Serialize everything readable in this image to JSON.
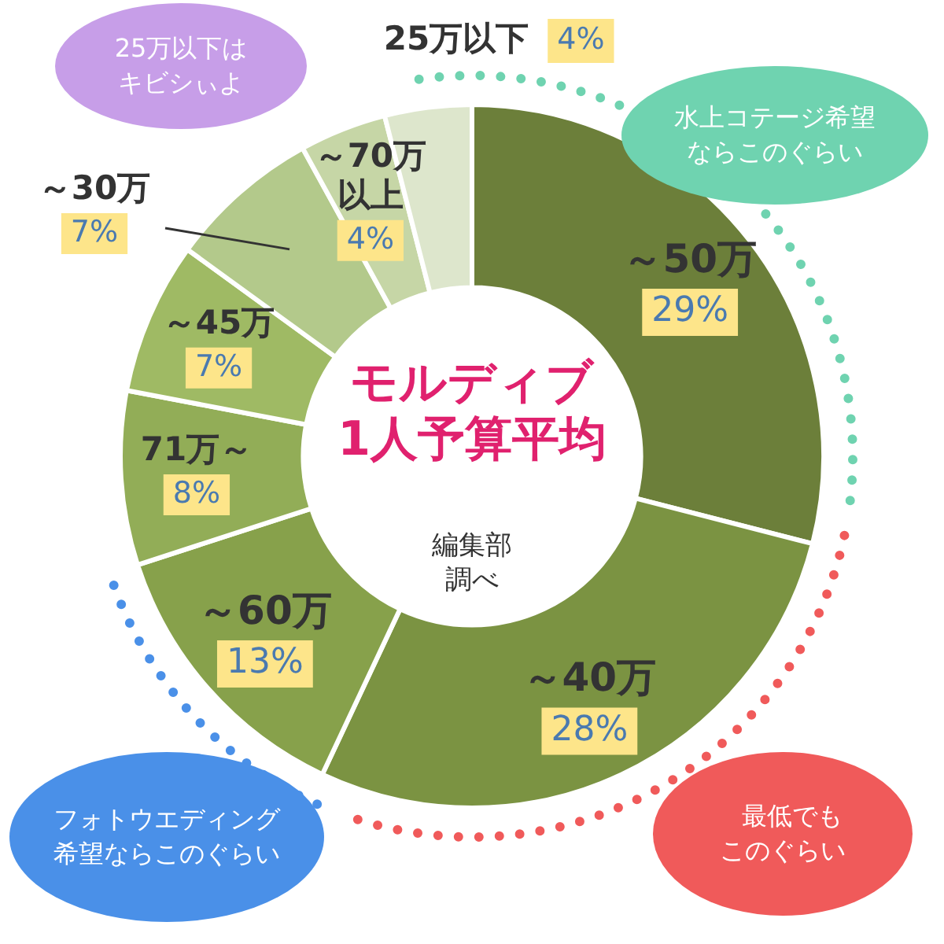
{
  "chart_data": {
    "type": "donut",
    "title": "モルディブ\n1人予算平均",
    "categories": [
      "～50万",
      "～40万",
      "～60万",
      "71万～",
      "～45万",
      "～30万",
      "～70万以上",
      "25万以下"
    ],
    "values": [
      29,
      28,
      13,
      8,
      7,
      7,
      4,
      4
    ],
    "value_labels": [
      "29%",
      "28%",
      "13%",
      "8%",
      "7%",
      "7%",
      "4%",
      "4%"
    ],
    "colors": [
      "#6c7f3a",
      "#7b9342",
      "#87a14b",
      "#92ad57",
      "#9fba64",
      "#b3c98b",
      "#c6d6a6",
      "#dde6cc"
    ],
    "legend": false,
    "annotations": [
      "編集部調べ",
      "25万以下はキビシぃよ",
      "水上コテージ希望ならこのぐらい",
      "フォトウエディング希望ならこのぐらい",
      "最低でもこのぐらい"
    ]
  }
}
